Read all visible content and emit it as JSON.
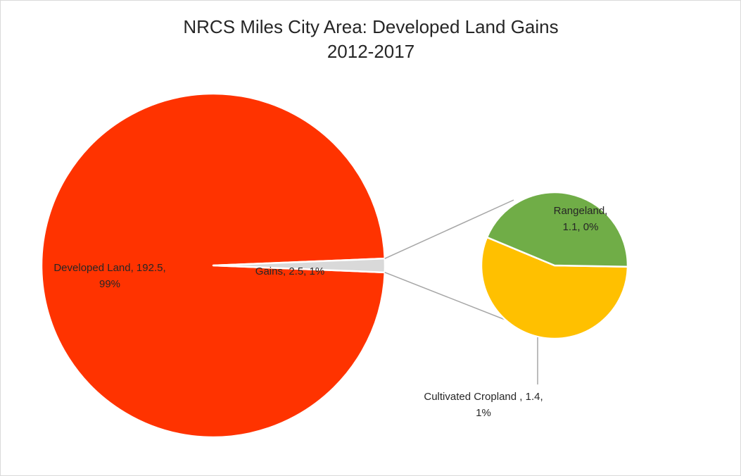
{
  "chart_data": {
    "type": "pie",
    "subtype": "pie-of-pie",
    "title": "NRCS Miles City Area: Developed Land Gains",
    "subtitle": "2012-2017",
    "main_pie": [
      {
        "name": "Developed Land",
        "value": 192.5,
        "percent": "99%",
        "color": "#ff3300",
        "label_line1": "Developed Land, 192.5,",
        "label_line2": "99%"
      },
      {
        "name": "Gains",
        "value": 2.5,
        "percent": "1%",
        "color": "#d9d9d9",
        "label_line1": "Gains, 2.5, 1%",
        "label_line2": ""
      }
    ],
    "secondary_pie": [
      {
        "name": "Rangeland",
        "value": 1.1,
        "percent": "0%",
        "color": "#70ad47",
        "label_line1": "Rangeland,",
        "label_line2": "1.1, 0%"
      },
      {
        "name": "Cultivated Cropland",
        "value": 1.4,
        "percent": "1%",
        "color": "#ffc000",
        "label_line1": "Cultivated Cropland , 1.4,",
        "label_line2": "1%"
      }
    ],
    "connector_color": "#a6a6a6"
  }
}
